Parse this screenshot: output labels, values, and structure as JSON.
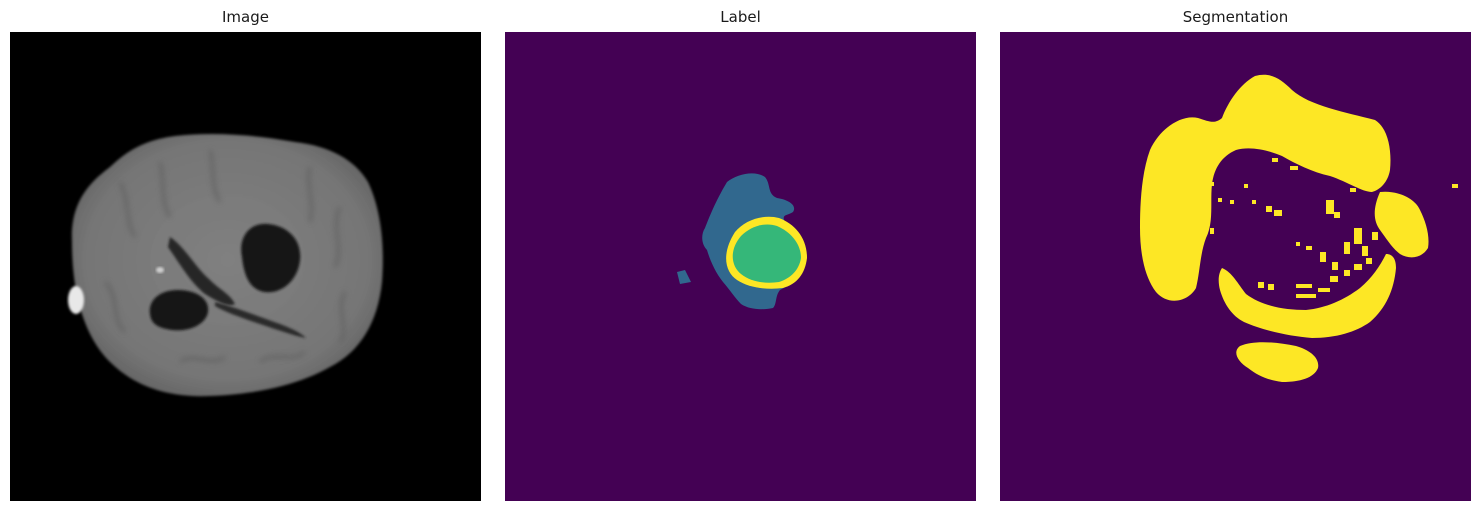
{
  "panels": {
    "image": {
      "title": "Image",
      "colors": {
        "background": "#000000",
        "brain_tissue": "#7a7a7a",
        "brain_dark": "#5c5c5c",
        "cavity": "#141414",
        "bright_spot": "#e8e8e8"
      }
    },
    "label": {
      "title": "Label",
      "colors": {
        "background": "#440154",
        "edema": "#31688e",
        "tumor_core": "#35b779",
        "enhancing_rim": "#fde725"
      }
    },
    "segmentation": {
      "title": "Segmentation",
      "colors": {
        "background": "#440154",
        "foreground": "#fde725"
      }
    }
  }
}
